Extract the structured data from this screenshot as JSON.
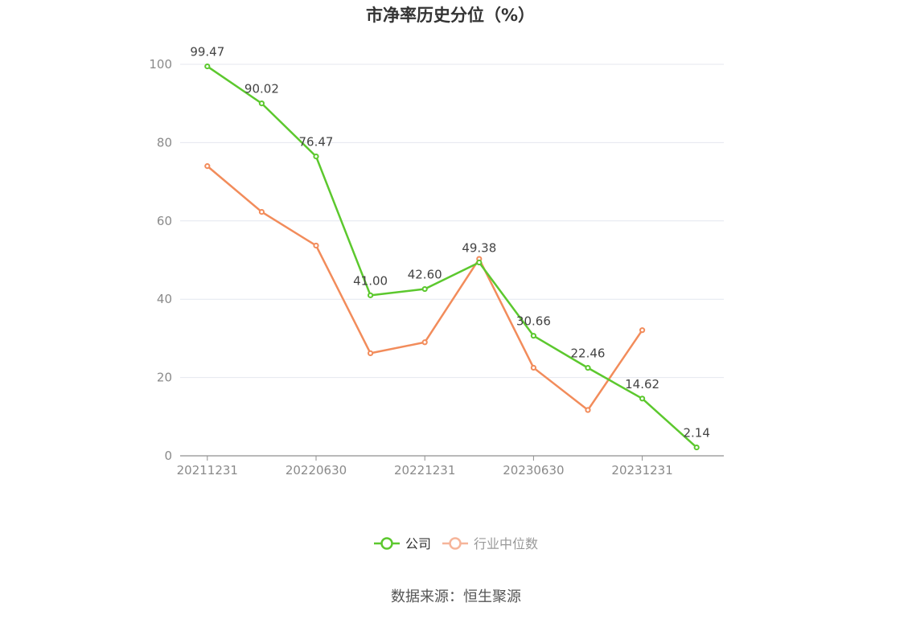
{
  "chart_data": {
    "type": "line",
    "title": "市净率历史分位（%）",
    "x": [
      "20211231",
      "20220331",
      "20220630",
      "20220930",
      "20221231",
      "20230331",
      "20230630",
      "20230930",
      "20231231",
      "20240331"
    ],
    "x_tick_labels": [
      "20211231",
      "20220630",
      "20221231",
      "20230630",
      "20231231"
    ],
    "y_ticks": [
      0,
      20,
      40,
      60,
      80,
      100
    ],
    "ylim": [
      0,
      100
    ],
    "grid": true,
    "legend_position": "bottom",
    "series": [
      {
        "name": "公司",
        "color": "#5cc82e",
        "values": [
          99.47,
          90.02,
          76.47,
          41.0,
          42.6,
          49.38,
          30.66,
          22.46,
          14.62,
          2.14
        ],
        "data_labels": [
          "99.47",
          "90.02",
          "76.47",
          "41.00",
          "42.60",
          "49.38",
          "30.66",
          "22.46",
          "14.62",
          "2.14"
        ]
      },
      {
        "name": "行业中位数",
        "color": "#f28c5b",
        "values": [
          74.0,
          62.3,
          53.7,
          26.2,
          29.0,
          50.3,
          22.5,
          11.7,
          32.1,
          null
        ]
      }
    ],
    "source": "数据来源：恒生聚源"
  }
}
